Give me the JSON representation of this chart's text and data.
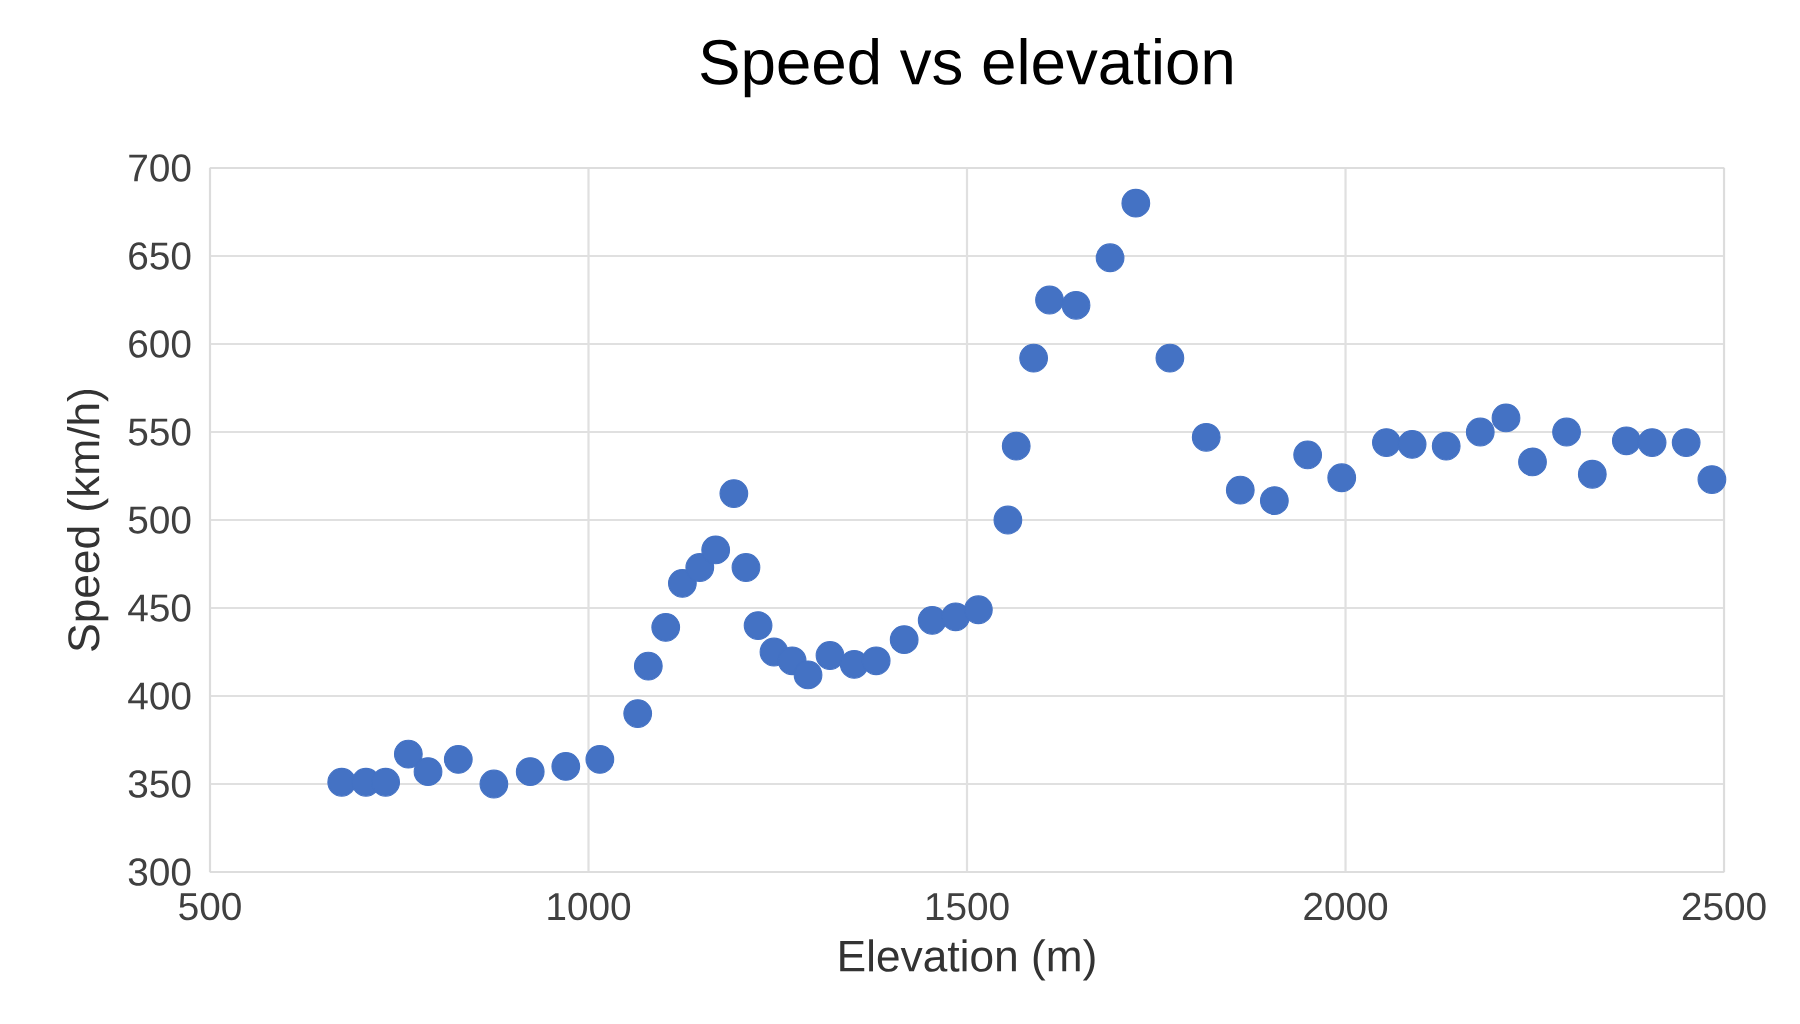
{
  "chart_data": {
    "type": "scatter",
    "title": "Speed vs elevation",
    "xlabel": "Elevation (m)",
    "ylabel": "Speed (km/h)",
    "x": [
      674,
      706,
      732,
      762,
      788,
      828,
      875,
      923,
      970,
      1015,
      1065,
      1079,
      1102,
      1124,
      1147,
      1168,
      1192,
      1208,
      1224,
      1245,
      1269,
      1290,
      1319,
      1351,
      1380,
      1417,
      1454,
      1485,
      1515,
      1554,
      1565,
      1588,
      1609,
      1644,
      1689,
      1723,
      1768,
      1816,
      1861,
      1906,
      1950,
      1995,
      2054,
      2088,
      2133,
      2178,
      2212,
      2247,
      2292,
      2326,
      2371,
      2405,
      2450,
      2484
    ],
    "values": [
      351,
      351,
      351,
      367,
      357,
      364,
      350,
      357,
      360,
      364,
      390,
      417,
      439,
      464,
      473,
      483,
      515,
      473,
      440,
      425,
      420,
      412,
      423,
      418,
      420,
      432,
      443,
      445,
      449,
      500,
      542,
      592,
      625,
      622,
      649,
      680,
      592,
      547,
      517,
      511,
      537,
      524,
      544,
      543,
      542,
      550,
      558,
      533,
      550,
      526,
      545,
      544,
      544,
      523
    ],
    "color": "#4472c4",
    "marker": "circle",
    "xlim": [
      500,
      2500
    ],
    "xticks": [
      500,
      1000,
      1500,
      2000,
      2500
    ],
    "ylim": [
      300,
      700
    ],
    "yticks": [
      300,
      350,
      400,
      450,
      500,
      550,
      600,
      650,
      700
    ],
    "grid": true
  }
}
